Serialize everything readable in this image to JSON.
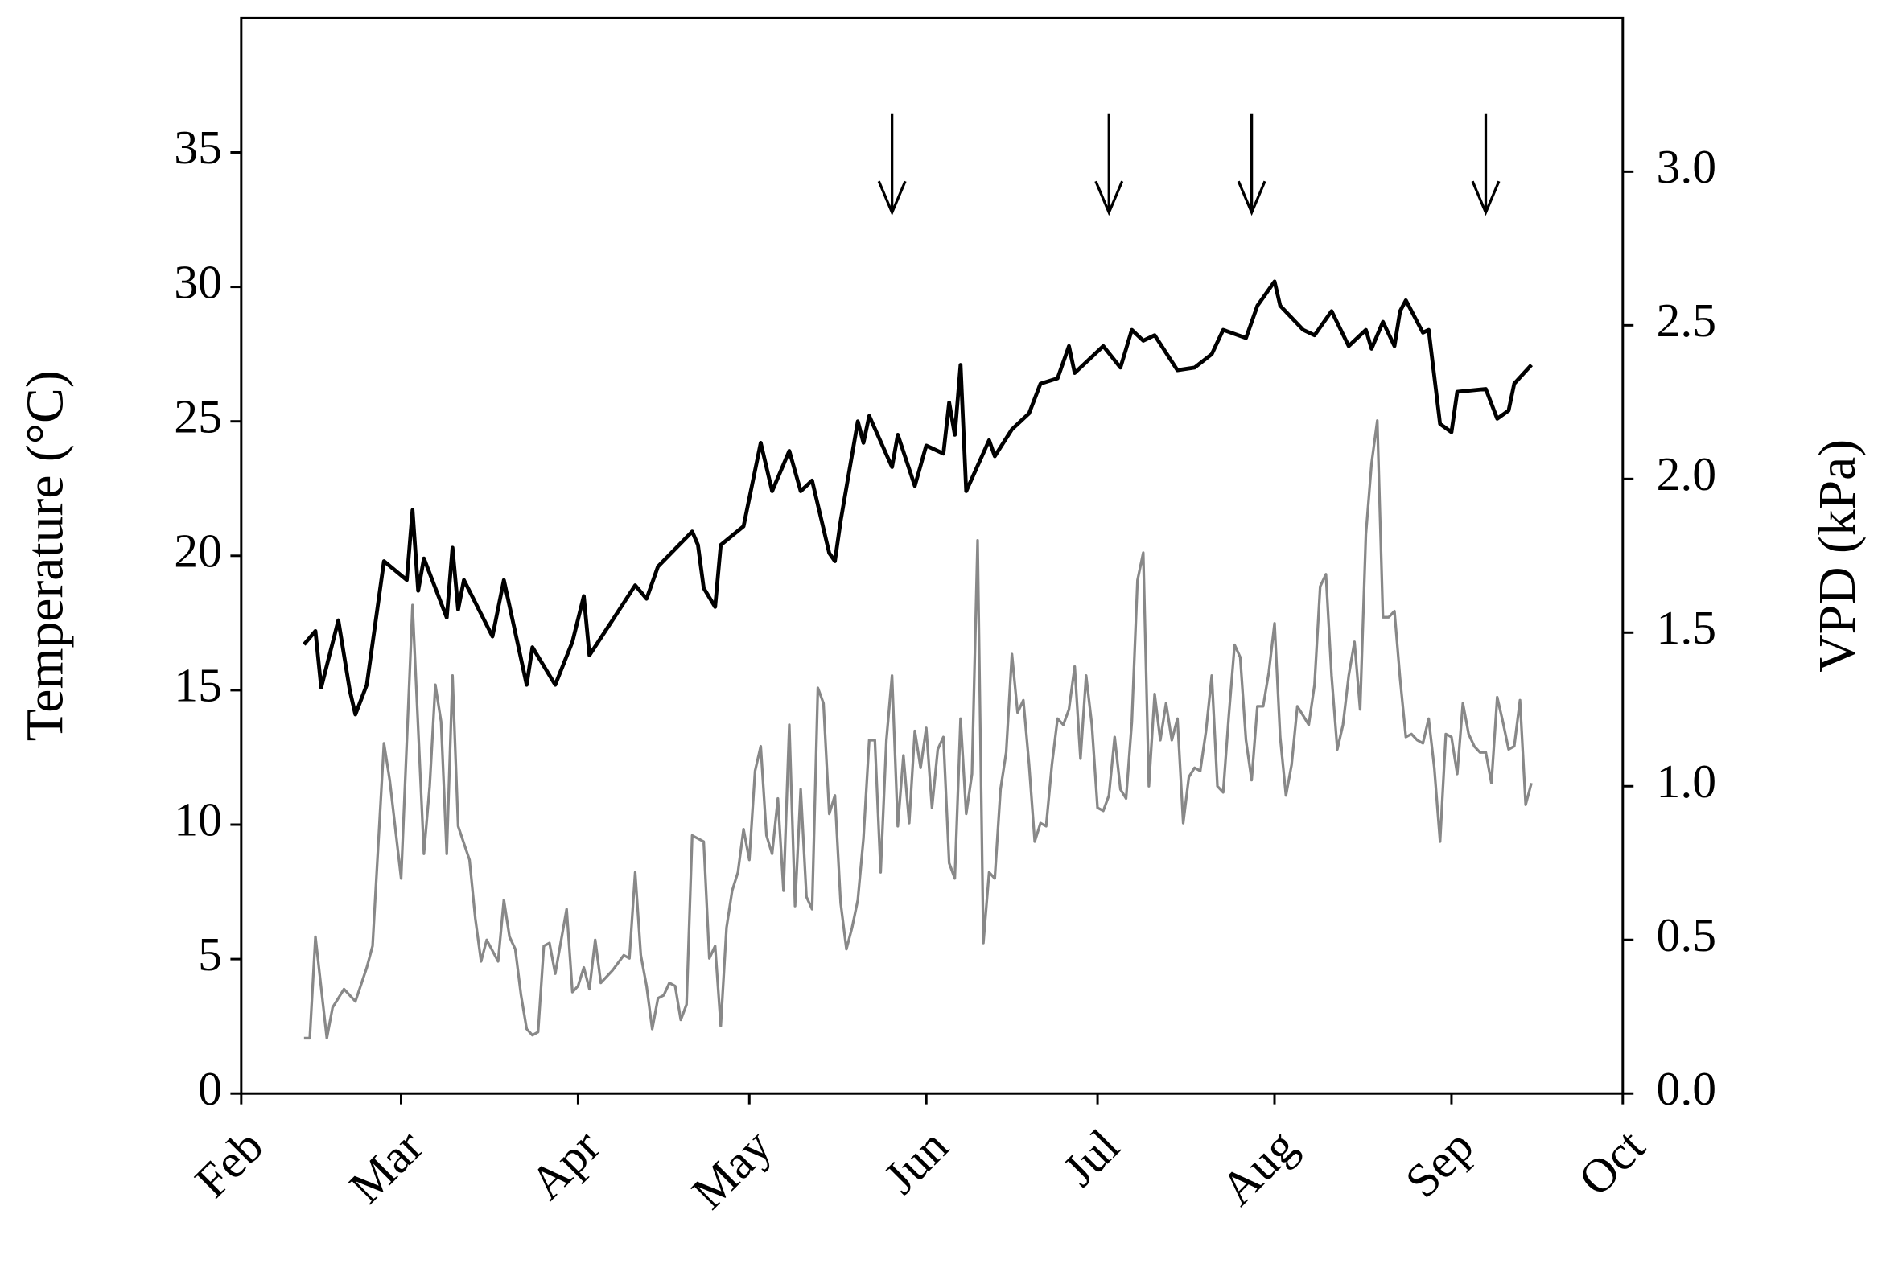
{
  "chart_data": {
    "type": "line",
    "ylabel": "Temperature (°C)",
    "y2label": "VPD (kPa)",
    "xlim": [
      0,
      242
    ],
    "xticks": [
      {
        "value": 0,
        "label": "Feb"
      },
      {
        "value": 28,
        "label": "Mar"
      },
      {
        "value": 59,
        "label": "Apr"
      },
      {
        "value": 89,
        "label": "May"
      },
      {
        "value": 120,
        "label": "Jun"
      },
      {
        "value": 150,
        "label": "Jul"
      },
      {
        "value": 181,
        "label": "Aug"
      },
      {
        "value": 212,
        "label": "Sep"
      },
      {
        "value": 242,
        "label": "Oct"
      }
    ],
    "ylim": [
      0,
      40
    ],
    "yticks": [
      0,
      5,
      10,
      15,
      20,
      25,
      30,
      35
    ],
    "y2lim": [
      0,
      3.5
    ],
    "y2ticks": [
      {
        "value": 0,
        "label": "0.0"
      },
      0.5,
      {
        "value": 1,
        "label": "1.0"
      },
      1.5,
      {
        "value": 2,
        "label": "2.0"
      },
      2.5,
      {
        "value": 3,
        "label": "3.0"
      }
    ],
    "arrows": [
      114,
      152,
      177,
      218
    ],
    "series": [
      {
        "color": "#000000",
        "axis": "y",
        "x": [
          11,
          13,
          14,
          17,
          19,
          20,
          22,
          25,
          29,
          30,
          31,
          32,
          36,
          37,
          38,
          39,
          44,
          46,
          50,
          51,
          55,
          58,
          60,
          61,
          65,
          69,
          71,
          73,
          79,
          80,
          81,
          83,
          84,
          88,
          91,
          93,
          96,
          98,
          100,
          103,
          104,
          105,
          108,
          109,
          110,
          114,
          115,
          118,
          120,
          123,
          124,
          125,
          126,
          127,
          131,
          132,
          135,
          138,
          140,
          143,
          145,
          146,
          151,
          154,
          156,
          158,
          160,
          164,
          167,
          170,
          172,
          176,
          178,
          181,
          182,
          186,
          188,
          191,
          194,
          197,
          198,
          200,
          202,
          203,
          204,
          207,
          208,
          210,
          212,
          213,
          218,
          220,
          222,
          223,
          226
        ],
        "values": [
          16.7,
          17.2,
          15.1,
          17.6,
          15.0,
          14.1,
          15.2,
          19.8,
          19.1,
          21.7,
          18.7,
          19.9,
          17.7,
          20.3,
          18.0,
          19.1,
          17.0,
          19.1,
          15.2,
          16.6,
          15.2,
          16.8,
          18.5,
          16.3,
          17.6,
          18.9,
          18.4,
          19.6,
          20.9,
          20.4,
          18.8,
          18.1,
          20.4,
          21.1,
          24.2,
          22.4,
          23.9,
          22.4,
          22.8,
          20.1,
          19.8,
          21.3,
          25.0,
          24.2,
          25.2,
          23.3,
          24.5,
          22.6,
          24.1,
          23.8,
          25.7,
          24.5,
          27.1,
          22.4,
          24.3,
          23.7,
          24.7,
          25.3,
          26.4,
          26.6,
          27.8,
          26.8,
          27.8,
          27.0,
          28.4,
          28.0,
          28.2,
          26.9,
          27.0,
          27.5,
          28.4,
          28.1,
          29.3,
          30.2,
          29.3,
          28.4,
          28.2,
          29.1,
          27.8,
          28.4,
          27.7,
          28.7,
          27.8,
          29.1,
          29.5,
          28.3,
          28.4,
          24.9,
          24.6,
          26.1,
          26.2,
          25.1,
          25.4,
          26.4,
          27.1
        ]
      },
      {
        "color": "#888888",
        "axis": "y2",
        "x": [
          11,
          12,
          13,
          15,
          16,
          18,
          20,
          22,
          23,
          25,
          26,
          28,
          30,
          32,
          33,
          34,
          35,
          36,
          37,
          38,
          40,
          41,
          42,
          43,
          45,
          46,
          47,
          48,
          49,
          50,
          51,
          52,
          53,
          54,
          55,
          57,
          58,
          59,
          60,
          61,
          62,
          63,
          65,
          67,
          68,
          69,
          70,
          71,
          72,
          73,
          74,
          75,
          76,
          77,
          78,
          79,
          81,
          82,
          83,
          84,
          85,
          86,
          87,
          88,
          89,
          90,
          91,
          92,
          93,
          94,
          95,
          96,
          97,
          98,
          99,
          100,
          101,
          102,
          103,
          104,
          105,
          106,
          107,
          108,
          109,
          110,
          111,
          112,
          113,
          114,
          115,
          116,
          117,
          118,
          119,
          120,
          121,
          122,
          123,
          124,
          125,
          126,
          127,
          128,
          129,
          130,
          131,
          132,
          133,
          134,
          135,
          136,
          137,
          138,
          139,
          140,
          141,
          142,
          143,
          144,
          145,
          146,
          147,
          148,
          149,
          150,
          151,
          152,
          153,
          154,
          155,
          156,
          157,
          158,
          159,
          160,
          161,
          162,
          163,
          164,
          165,
          166,
          167,
          168,
          169,
          170,
          171,
          172,
          173,
          174,
          175,
          176,
          177,
          178,
          179,
          180,
          181,
          182,
          183,
          184,
          185,
          186,
          187,
          188,
          189,
          190,
          191,
          192,
          193,
          194,
          195,
          196,
          197,
          198,
          199,
          200,
          201,
          202,
          203,
          204,
          205,
          206,
          207,
          208,
          209,
          210,
          211,
          212,
          213,
          214,
          215,
          216,
          217,
          218,
          219,
          220,
          221,
          222,
          223,
          224,
          225,
          226
        ],
        "values": [
          0.18,
          0.18,
          0.51,
          0.18,
          0.28,
          0.34,
          0.3,
          0.41,
          0.48,
          1.14,
          1.02,
          0.7,
          1.59,
          0.78,
          1.0,
          1.33,
          1.21,
          0.78,
          1.36,
          0.87,
          0.76,
          0.57,
          0.43,
          0.5,
          0.43,
          0.63,
          0.51,
          0.47,
          0.32,
          0.21,
          0.19,
          0.2,
          0.48,
          0.49,
          0.39,
          0.6,
          0.33,
          0.35,
          0.41,
          0.34,
          0.5,
          0.36,
          0.4,
          0.45,
          0.44,
          0.72,
          0.45,
          0.35,
          0.21,
          0.31,
          0.32,
          0.36,
          0.35,
          0.24,
          0.29,
          0.84,
          0.82,
          0.44,
          0.48,
          0.22,
          0.54,
          0.66,
          0.72,
          0.86,
          0.76,
          1.05,
          1.13,
          0.84,
          0.78,
          0.96,
          0.66,
          1.2,
          0.61,
          0.99,
          0.64,
          0.6,
          1.32,
          1.27,
          0.91,
          0.97,
          0.62,
          0.47,
          0.54,
          0.63,
          0.83,
          1.15,
          1.15,
          0.72,
          1.15,
          1.36,
          0.87,
          1.1,
          0.88,
          1.18,
          1.06,
          1.19,
          0.93,
          1.12,
          1.16,
          0.75,
          0.7,
          1.22,
          0.91,
          1.04,
          1.8,
          0.49,
          0.72,
          0.7,
          0.99,
          1.11,
          1.43,
          1.24,
          1.28,
          1.07,
          0.82,
          0.88,
          0.87,
          1.07,
          1.22,
          1.2,
          1.25,
          1.39,
          1.09,
          1.36,
          1.2,
          0.93,
          0.92,
          0.97,
          1.16,
          0.99,
          0.96,
          1.21,
          1.67,
          1.76,
          1.0,
          1.3,
          1.15,
          1.27,
          1.15,
          1.22,
          0.88,
          1.03,
          1.06,
          1.05,
          1.18,
          1.36,
          1.0,
          0.98,
          1.23,
          1.46,
          1.42,
          1.15,
          1.02,
          1.26,
          1.26,
          1.37,
          1.53,
          1.16,
          0.97,
          1.07,
          1.26,
          1.23,
          1.2,
          1.33,
          1.65,
          1.69,
          1.36,
          1.12,
          1.2,
          1.36,
          1.47,
          1.25,
          1.82,
          2.05,
          2.19,
          1.55,
          1.55,
          1.57,
          1.35,
          1.16,
          1.17,
          1.15,
          1.14,
          1.22,
          1.06,
          0.82,
          1.17,
          1.16,
          1.04,
          1.27,
          1.17,
          1.13,
          1.11,
          1.11,
          1.01,
          1.29,
          1.21,
          1.12,
          1.13,
          1.28,
          0.94,
          1.01
        ]
      }
    ]
  }
}
